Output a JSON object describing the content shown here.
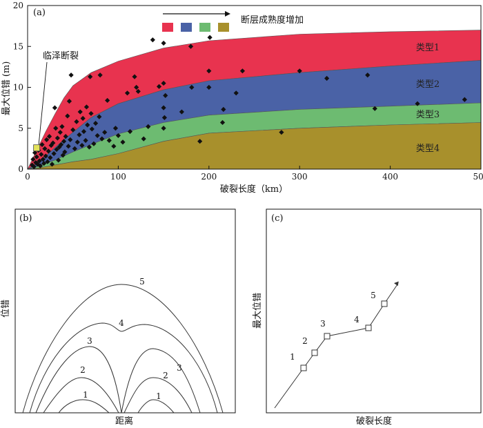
{
  "chart_data": [
    {
      "type": "area",
      "panel_label": "(a)",
      "xlabel": "破裂长度（km）",
      "ylabel": "最大位错 (m)",
      "xlim": [
        0,
        500
      ],
      "ylim": [
        0,
        20
      ],
      "xticks": [
        0,
        100,
        200,
        300,
        400,
        500
      ],
      "yticks": [
        0,
        5,
        10,
        15,
        20
      ],
      "legend_title": "断层成熟度增加",
      "legend_colors": [
        "#e8334f",
        "#4a62a6",
        "#6dbb71",
        "#a8902c"
      ],
      "bands": [
        {
          "name": "类型1",
          "color": "#e8334f"
        },
        {
          "name": "类型2",
          "color": "#4a62a6"
        },
        {
          "name": "类型3",
          "color": "#6dbb71"
        },
        {
          "name": "类型4",
          "color": "#a8902c"
        }
      ],
      "boundary_x": [
        0,
        10,
        20,
        30,
        40,
        50,
        70,
        100,
        150,
        200,
        300,
        400,
        500
      ],
      "boundaries": [
        [
          0,
          2.3,
          4.6,
          6.7,
          8.7,
          10.2,
          11.8,
          13.2,
          14.8,
          15.7,
          16.5,
          16.8,
          17.0
        ],
        [
          0,
          0.7,
          1.6,
          2.6,
          3.6,
          4.5,
          6.3,
          8.0,
          9.7,
          10.8,
          11.8,
          12.6,
          13.3
        ],
        [
          0,
          0.3,
          0.7,
          1.1,
          1.6,
          2.1,
          3.0,
          4.3,
          5.7,
          6.6,
          7.3,
          7.7,
          8.1
        ],
        [
          0,
          0.1,
          0.3,
          0.5,
          0.7,
          0.9,
          1.2,
          1.9,
          3.4,
          4.4,
          5.0,
          5.4,
          5.7
        ]
      ],
      "points": [
        [
          5,
          0.5
        ],
        [
          6,
          1.2
        ],
        [
          7,
          0.3
        ],
        [
          8,
          2.0
        ],
        [
          9,
          0.8
        ],
        [
          10,
          1.5
        ],
        [
          11,
          0.6
        ],
        [
          12,
          2.3
        ],
        [
          13,
          1.0
        ],
        [
          14,
          0.4
        ],
        [
          15,
          1.8
        ],
        [
          16,
          3.0
        ],
        [
          17,
          1.2
        ],
        [
          18,
          0.7
        ],
        [
          19,
          2.5
        ],
        [
          20,
          1.6
        ],
        [
          21,
          3.6
        ],
        [
          22,
          0.9
        ],
        [
          23,
          2.2
        ],
        [
          24,
          4.0
        ],
        [
          25,
          1.4
        ],
        [
          26,
          2.9
        ],
        [
          27,
          0.6
        ],
        [
          28,
          3.2
        ],
        [
          29,
          1.9
        ],
        [
          30,
          7.5
        ],
        [
          31,
          5.0
        ],
        [
          32,
          2.4
        ],
        [
          33,
          3.8
        ],
        [
          34,
          1.1
        ],
        [
          35,
          2.7
        ],
        [
          36,
          4.5
        ],
        [
          37,
          3.0
        ],
        [
          38,
          5.2
        ],
        [
          39,
          1.7
        ],
        [
          40,
          3.4
        ],
        [
          41,
          2.1
        ],
        [
          42,
          4.0
        ],
        [
          44,
          6.5
        ],
        [
          45,
          2.8
        ],
        [
          46,
          8.3
        ],
        [
          47,
          3.6
        ],
        [
          48,
          11.5
        ],
        [
          50,
          4.8
        ],
        [
          52,
          2.5
        ],
        [
          54,
          5.8
        ],
        [
          55,
          3.3
        ],
        [
          57,
          4.2
        ],
        [
          58,
          7.0
        ],
        [
          60,
          2.9
        ],
        [
          61,
          6.2
        ],
        [
          62,
          4.6
        ],
        [
          64,
          3.5
        ],
        [
          65,
          7.6
        ],
        [
          66,
          5.4
        ],
        [
          68,
          2.7
        ],
        [
          69,
          11.3
        ],
        [
          70,
          6.8
        ],
        [
          71,
          4.9
        ],
        [
          73,
          3.1
        ],
        [
          75,
          5.6
        ],
        [
          77,
          4.1
        ],
        [
          79,
          6.4
        ],
        [
          80,
          11.5
        ],
        [
          82,
          3.7
        ],
        [
          85,
          4.5
        ],
        [
          88,
          8.4
        ],
        [
          90,
          3.5
        ],
        [
          95,
          2.8
        ],
        [
          97,
          5.0
        ],
        [
          100,
          4.1
        ],
        [
          105,
          3.3
        ],
        [
          110,
          9.3
        ],
        [
          113,
          4.6
        ],
        [
          118,
          11.3
        ],
        [
          120,
          10.0
        ],
        [
          122,
          9.5
        ],
        [
          128,
          3.7
        ],
        [
          133,
          5.2
        ],
        [
          138,
          15.8
        ],
        [
          145,
          10.1
        ],
        [
          150,
          15.4
        ],
        [
          150,
          10.5
        ],
        [
          150,
          7.5
        ],
        [
          151,
          6.3
        ],
        [
          150,
          5.0
        ],
        [
          152,
          9.0
        ],
        [
          170,
          7.0
        ],
        [
          180,
          15.0
        ],
        [
          181,
          10.0
        ],
        [
          190,
          3.4
        ],
        [
          200,
          12.0
        ],
        [
          200,
          10.0
        ],
        [
          201,
          16.1
        ],
        [
          215,
          5.7
        ],
        [
          216,
          7.3
        ],
        [
          230,
          9.3
        ],
        [
          237,
          12.0
        ],
        [
          280,
          4.5
        ],
        [
          300,
          12.0
        ],
        [
          330,
          11.1
        ],
        [
          375,
          11.5
        ],
        [
          383,
          7.4
        ],
        [
          430,
          8.0
        ],
        [
          482,
          8.5
        ]
      ],
      "annotation": {
        "text": "临泽断裂",
        "x": 10,
        "y": 2.6
      }
    },
    {
      "type": "line",
      "panel_label": "(b)",
      "xlabel": "距离",
      "ylabel": "位错",
      "curve_labels": [
        "5",
        "4",
        "3",
        "2",
        "3",
        "2",
        "1",
        "1"
      ]
    },
    {
      "type": "line",
      "panel_label": "(c)",
      "xlabel": "破裂长度",
      "ylabel": "最大位错",
      "point_labels": [
        "1",
        "2",
        "3",
        "4",
        "5"
      ]
    }
  ]
}
